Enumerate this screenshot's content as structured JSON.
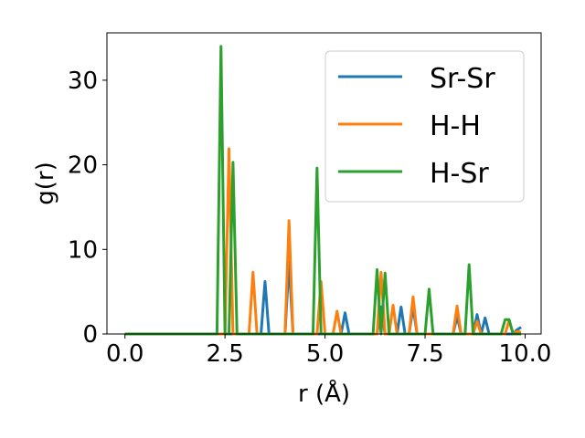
{
  "chart_data": {
    "type": "line",
    "title": "",
    "xlabel": "r (Å)",
    "ylabel": "g(r)",
    "xlim": [
      -0.45,
      10.4
    ],
    "ylim": [
      0,
      35.6
    ],
    "xticks": [
      0.0,
      2.5,
      5.0,
      7.5,
      10.0
    ],
    "xtick_labels": [
      "0.0",
      "2.5",
      "5.0",
      "7.5",
      "10.0"
    ],
    "yticks": [
      0,
      10,
      20,
      30
    ],
    "ytick_labels": [
      "0",
      "10",
      "20",
      "30"
    ],
    "grid": false,
    "legend_position": "upper-right",
    "series": [
      {
        "name": "Sr-Sr",
        "color": "#1f77b4",
        "points": [
          [
            0.0,
            0
          ],
          [
            3.4,
            0
          ],
          [
            3.5,
            6.2
          ],
          [
            3.6,
            0
          ],
          [
            4.0,
            0
          ],
          [
            4.1,
            8.6
          ],
          [
            4.2,
            0
          ],
          [
            5.4,
            0
          ],
          [
            5.5,
            2.5
          ],
          [
            5.6,
            0
          ],
          [
            6.3,
            0
          ],
          [
            6.4,
            3.2
          ],
          [
            6.5,
            0
          ],
          [
            6.8,
            0
          ],
          [
            6.9,
            3.2
          ],
          [
            7.0,
            0
          ],
          [
            7.1,
            0
          ],
          [
            7.2,
            3.2
          ],
          [
            7.3,
            0
          ],
          [
            8.2,
            0
          ],
          [
            8.3,
            2.1
          ],
          [
            8.4,
            0
          ],
          [
            8.7,
            0
          ],
          [
            8.8,
            2.3
          ],
          [
            8.9,
            0
          ],
          [
            8.9,
            0
          ],
          [
            9.0,
            1.9
          ],
          [
            9.1,
            0
          ],
          [
            9.7,
            0
          ],
          [
            9.8,
            0.5
          ],
          [
            9.9,
            0.8
          ]
        ]
      },
      {
        "name": "H-H",
        "color": "#ff7f0e",
        "points": [
          [
            0.0,
            0
          ],
          [
            2.5,
            0
          ],
          [
            2.6,
            21.9
          ],
          [
            2.7,
            0
          ],
          [
            3.1,
            0
          ],
          [
            3.2,
            7.3
          ],
          [
            3.3,
            0
          ],
          [
            4.0,
            0
          ],
          [
            4.1,
            13.4
          ],
          [
            4.2,
            0
          ],
          [
            4.8,
            0
          ],
          [
            4.9,
            6.2
          ],
          [
            5.0,
            0
          ],
          [
            5.2,
            0
          ],
          [
            5.3,
            2.7
          ],
          [
            5.4,
            0
          ],
          [
            6.3,
            0
          ],
          [
            6.4,
            7.3
          ],
          [
            6.5,
            0
          ],
          [
            6.6,
            0
          ],
          [
            6.7,
            3.4
          ],
          [
            6.8,
            0
          ],
          [
            7.1,
            0
          ],
          [
            7.2,
            4.4
          ],
          [
            7.3,
            0
          ],
          [
            8.2,
            0
          ],
          [
            8.3,
            3.3
          ],
          [
            8.4,
            0
          ],
          [
            8.7,
            0
          ],
          [
            8.8,
            1.5
          ],
          [
            8.9,
            0
          ],
          [
            9.5,
            0
          ],
          [
            9.6,
            1.6
          ],
          [
            9.7,
            0
          ],
          [
            9.8,
            0.3
          ],
          [
            9.9,
            0.2
          ]
        ]
      },
      {
        "name": "H-Sr",
        "color": "#2ca02c",
        "points": [
          [
            0.0,
            0
          ],
          [
            2.3,
            0
          ],
          [
            2.4,
            34.0
          ],
          [
            2.5,
            0
          ],
          [
            2.6,
            0
          ],
          [
            2.7,
            20.3
          ],
          [
            2.8,
            0
          ],
          [
            4.7,
            0
          ],
          [
            4.8,
            19.6
          ],
          [
            4.9,
            0
          ],
          [
            6.2,
            0
          ],
          [
            6.3,
            7.6
          ],
          [
            6.4,
            0
          ],
          [
            6.4,
            0
          ],
          [
            6.5,
            7.2
          ],
          [
            6.6,
            0
          ],
          [
            7.5,
            0
          ],
          [
            7.6,
            5.3
          ],
          [
            7.7,
            0
          ],
          [
            8.5,
            0
          ],
          [
            8.6,
            8.2
          ],
          [
            8.7,
            0
          ],
          [
            9.4,
            0
          ],
          [
            9.5,
            1.7
          ],
          [
            9.6,
            1.7
          ],
          [
            9.7,
            0
          ],
          [
            9.9,
            0
          ]
        ]
      }
    ]
  }
}
